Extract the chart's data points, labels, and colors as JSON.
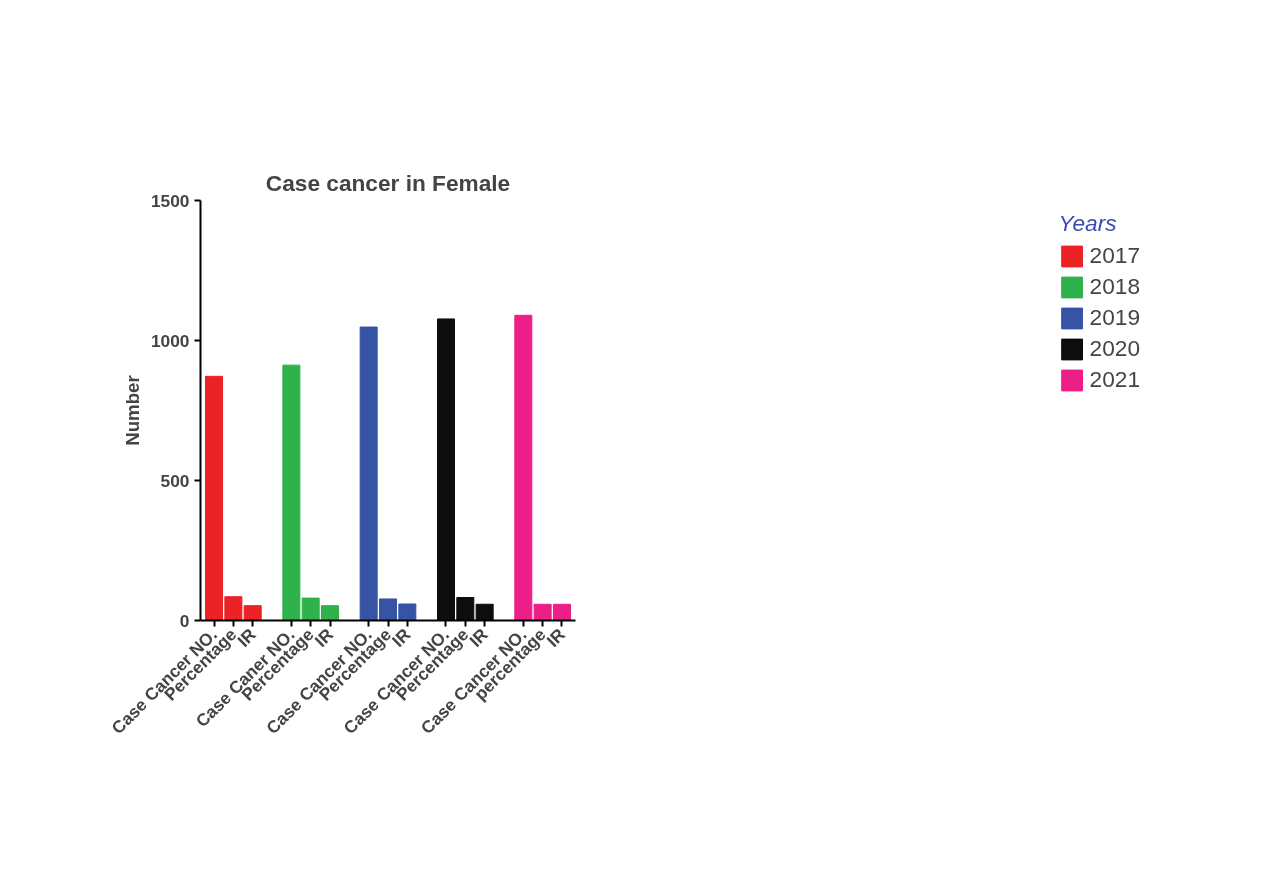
{
  "chart_data": {
    "type": "bar",
    "title": "Case cancer in Female",
    "ylabel": "Number",
    "legend_title": "Years",
    "legend": "top right",
    "grid": false,
    "categories": [
      "Case Cancer NO.",
      "Percentage",
      "IR",
      null,
      "Case Caner NO.",
      "Percentage",
      "IR",
      null,
      "Case Cancer NO.",
      "Percentage",
      "IR",
      null,
      "Case Cancer NO.",
      "Percentage",
      "IR",
      null,
      "Case Cancer NO.",
      "percentage",
      "IR"
    ],
    "ylim": [
      0,
      1500
    ],
    "yticks": [
      0,
      500,
      1000,
      1500
    ],
    "series": [
      {
        "name": "2017",
        "color": "#ec2227",
        "values": [
          872,
          85,
          53,
          null,
          null,
          null,
          null,
          null,
          null,
          null,
          null,
          null,
          null,
          null,
          null,
          null,
          null,
          null,
          null
        ]
      },
      {
        "name": "2018",
        "color": "#2fb24b",
        "values": [
          null,
          null,
          null,
          null,
          912,
          80,
          53,
          null,
          null,
          null,
          null,
          null,
          null,
          null,
          null,
          null,
          null,
          null,
          null
        ]
      },
      {
        "name": "2019",
        "color": "#3753a4",
        "values": [
          null,
          null,
          null,
          null,
          null,
          null,
          null,
          null,
          1048,
          77,
          59,
          null,
          null,
          null,
          null,
          null,
          null,
          null,
          null
        ]
      },
      {
        "name": "2020",
        "color": "#0d0d0d",
        "values": [
          null,
          null,
          null,
          null,
          null,
          null,
          null,
          null,
          null,
          null,
          null,
          null,
          1077,
          82,
          58,
          null,
          null,
          null,
          null
        ]
      },
      {
        "name": "2021",
        "color": "#ec1e88",
        "values": [
          null,
          null,
          null,
          null,
          null,
          null,
          null,
          null,
          null,
          null,
          null,
          null,
          null,
          null,
          null,
          null,
          1090,
          58,
          58
        ]
      }
    ]
  }
}
